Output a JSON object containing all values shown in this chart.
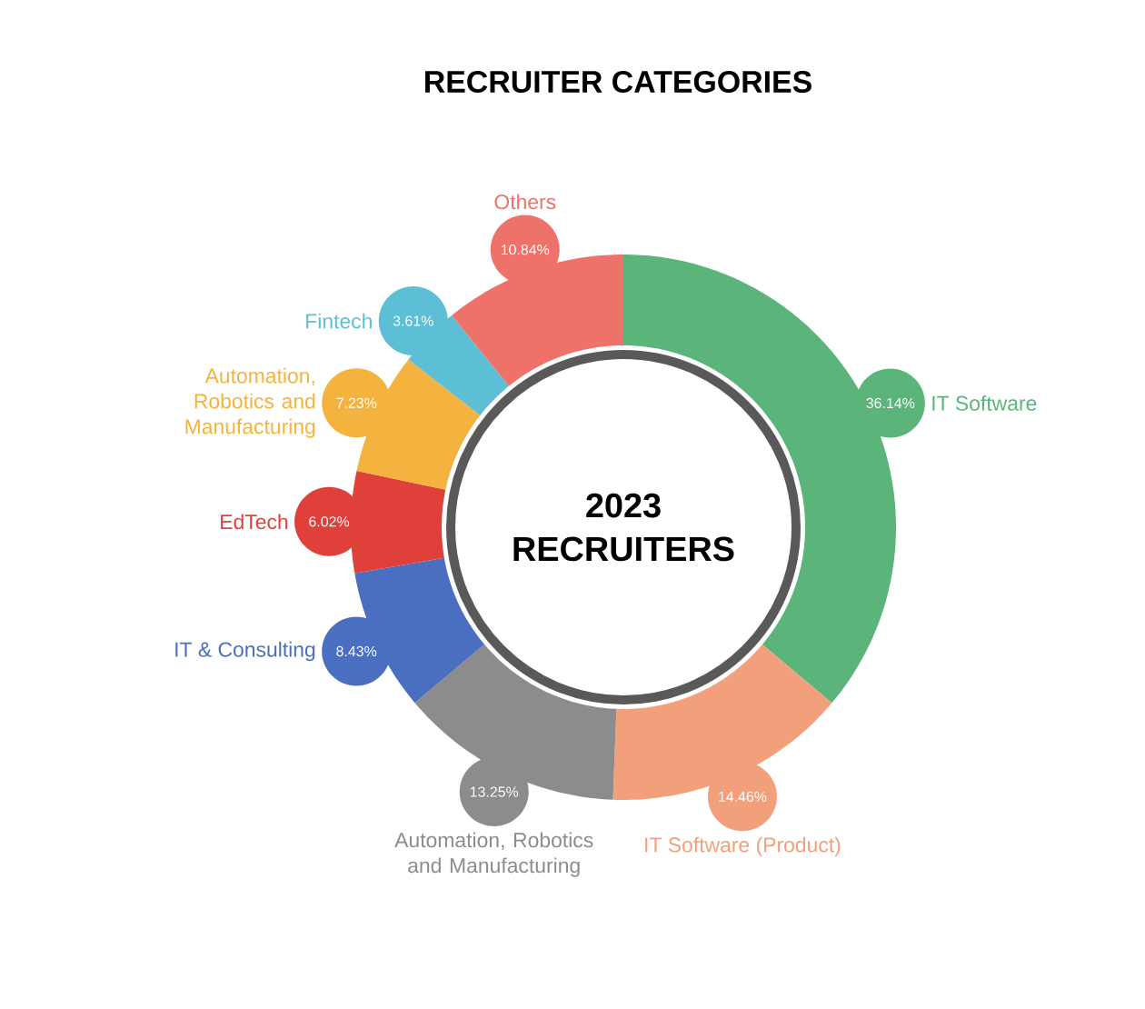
{
  "chart_data": {
    "type": "donut",
    "title": "RECRUITER CATEGORIES",
    "categories": [
      "IT Software",
      "IT Software (Product)",
      "Automation, Robotics and Manufacturing",
      "IT & Consulting",
      "EdTech",
      "Automation, Robotics and Manufacturing",
      "Fintech",
      "Others"
    ],
    "values": [
      36.14,
      14.46,
      13.25,
      8.43,
      6.02,
      7.23,
      3.61,
      10.84
    ],
    "value_labels": [
      "36.14%",
      "14.46%",
      "13.25%",
      "8.43%",
      "6.02%",
      "7.23%",
      "3.61%",
      "10.84%"
    ],
    "colors": [
      "#5bb57a",
      "#f2a07c",
      "#8c8c8c",
      "#4a6fc1",
      "#e0403a",
      "#f4b23e",
      "#5cbfd5",
      "#ee726a"
    ],
    "annotations": [
      "2023 RECRUITERS"
    ]
  }
}
